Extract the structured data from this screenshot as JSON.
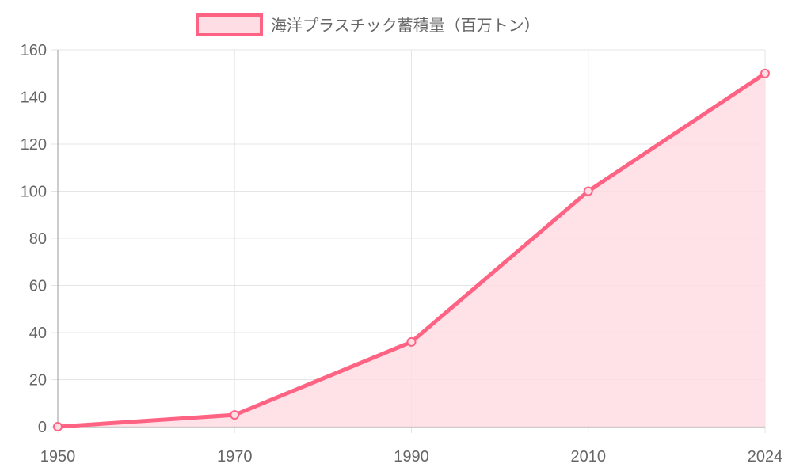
{
  "chart_data": {
    "type": "area",
    "legend": {
      "position": "top",
      "entries": [
        {
          "label": "海洋プラスチック蓄積量（百万トン）"
        }
      ]
    },
    "x": [
      "1950",
      "1970",
      "1990",
      "2010",
      "2024"
    ],
    "series": [
      {
        "name": "海洋プラスチック蓄積量（百万トン）",
        "values": [
          0,
          5,
          36,
          100,
          150
        ]
      }
    ],
    "ylim": [
      0,
      160
    ],
    "yticks": [
      0,
      20,
      40,
      60,
      80,
      100,
      120,
      140,
      160
    ],
    "grid": true,
    "colors": {
      "line": "#ff6384",
      "fill": "#ffdde4",
      "grid": "#e5e5e5",
      "axis": "#999999",
      "text": "#666666"
    }
  }
}
